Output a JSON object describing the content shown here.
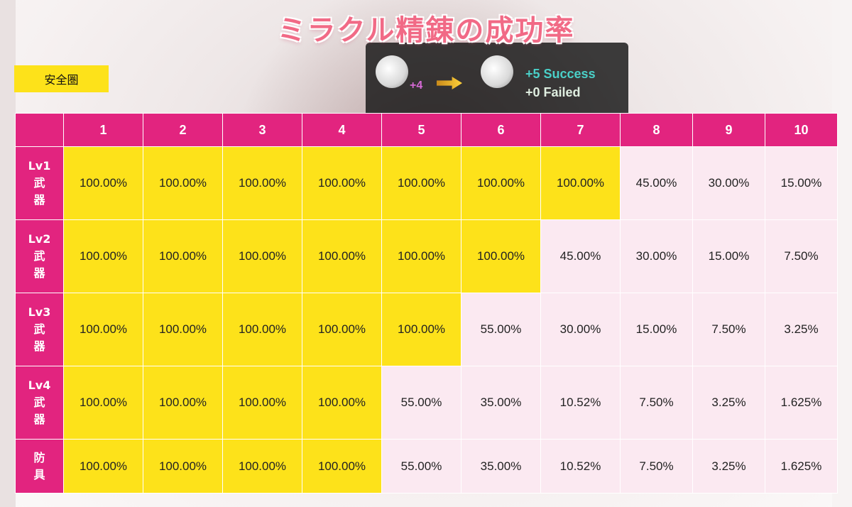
{
  "title": "ミラクル精錬の成功率",
  "legend": {
    "label": "安全圏",
    "color": "#fde21a"
  },
  "background_panel": {
    "left_level": "+4",
    "success": "+5 Success",
    "failed": "+0 Failed"
  },
  "colors": {
    "header": "#e2247f",
    "safe": "#fde21a",
    "risk": "#fbe9f1",
    "title": "#f16a86"
  },
  "table": {
    "columns": [
      "1",
      "2",
      "3",
      "4",
      "5",
      "6",
      "7",
      "8",
      "9",
      "10"
    ],
    "rows": [
      {
        "label": [
          "Lv1",
          "武",
          "器"
        ],
        "safe_count": 7,
        "values": [
          "100.00%",
          "100.00%",
          "100.00%",
          "100.00%",
          "100.00%",
          "100.00%",
          "100.00%",
          "45.00%",
          "30.00%",
          "15.00%"
        ]
      },
      {
        "label": [
          "Lv2",
          "武",
          "器"
        ],
        "safe_count": 6,
        "values": [
          "100.00%",
          "100.00%",
          "100.00%",
          "100.00%",
          "100.00%",
          "100.00%",
          "45.00%",
          "30.00%",
          "15.00%",
          "7.50%"
        ]
      },
      {
        "label": [
          "Lv3",
          "武",
          "器"
        ],
        "safe_count": 5,
        "values": [
          "100.00%",
          "100.00%",
          "100.00%",
          "100.00%",
          "100.00%",
          "55.00%",
          "30.00%",
          "15.00%",
          "7.50%",
          "3.25%"
        ]
      },
      {
        "label": [
          "Lv4",
          "武",
          "器"
        ],
        "safe_count": 4,
        "values": [
          "100.00%",
          "100.00%",
          "100.00%",
          "100.00%",
          "55.00%",
          "35.00%",
          "10.52%",
          "7.50%",
          "3.25%",
          "1.625%"
        ]
      },
      {
        "label": [
          "防",
          "具"
        ],
        "safe_count": 4,
        "values": [
          "100.00%",
          "100.00%",
          "100.00%",
          "100.00%",
          "55.00%",
          "35.00%",
          "10.52%",
          "7.50%",
          "3.25%",
          "1.625%"
        ]
      }
    ]
  }
}
